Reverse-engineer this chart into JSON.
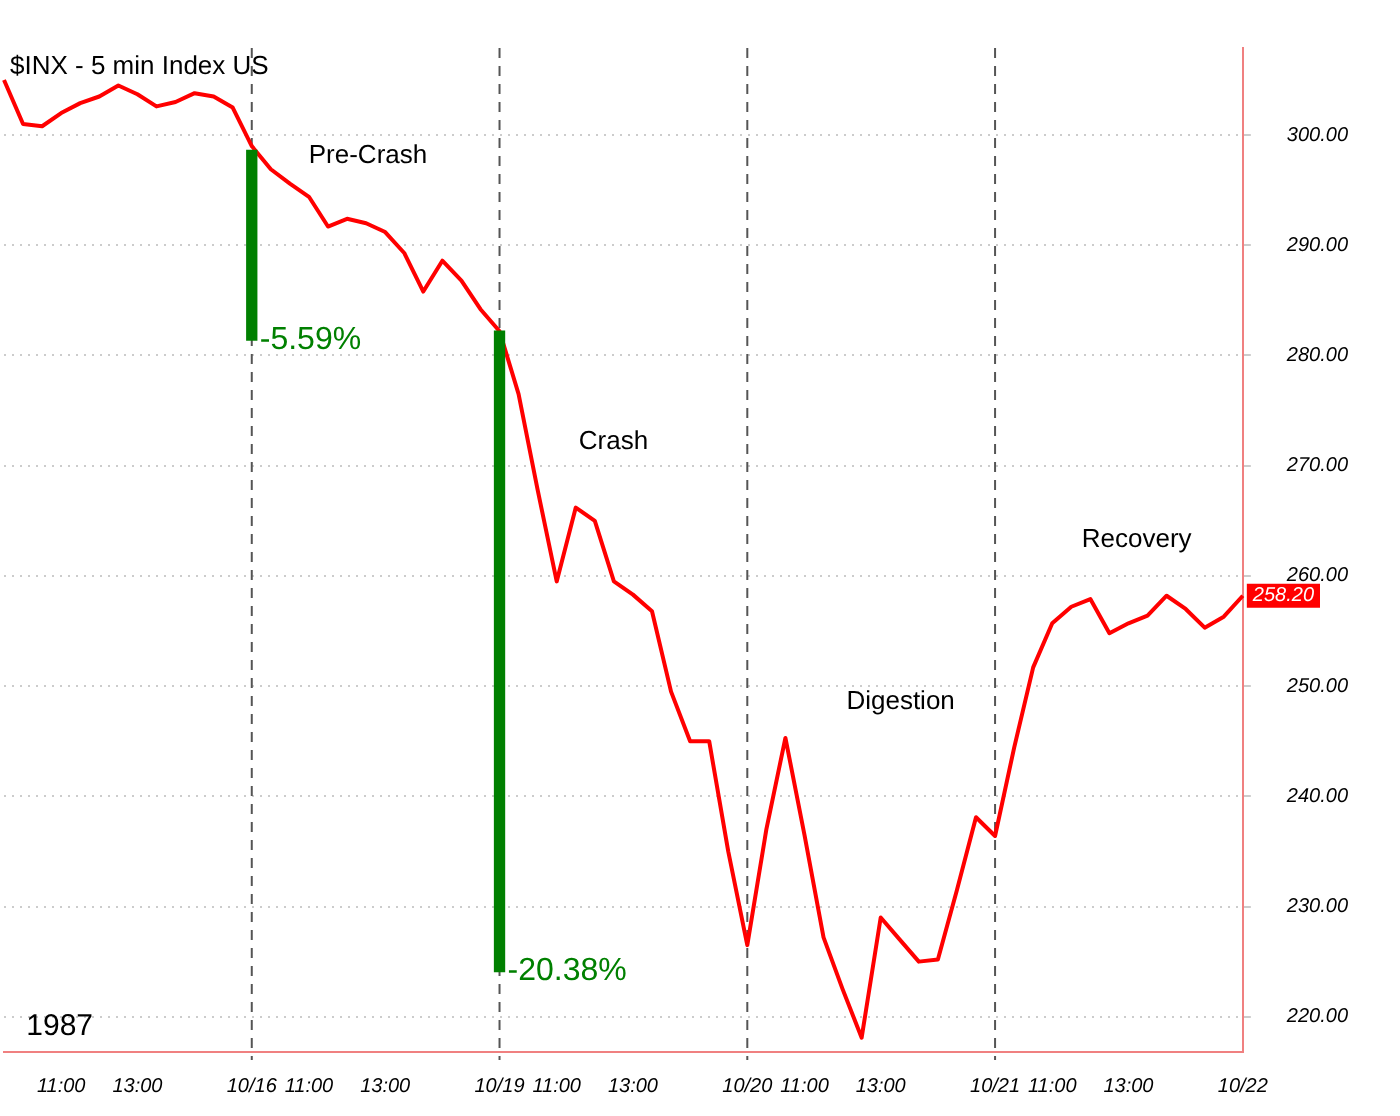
{
  "chart_data": {
    "type": "line",
    "title": "$INX - 5 min Index US",
    "categories": [
      null,
      null,
      null,
      "11:00",
      null,
      null,
      null,
      "13:00",
      null,
      null,
      null,
      null,
      null,
      "10/16",
      null,
      null,
      "11:00",
      null,
      null,
      null,
      "13:00",
      null,
      null,
      null,
      null,
      null,
      "10/19",
      null,
      null,
      "11:00",
      null,
      null,
      null,
      "13:00",
      null,
      null,
      null,
      null,
      null,
      "10/20",
      null,
      null,
      "11:00",
      null,
      null,
      null,
      "13:00",
      null,
      null,
      null,
      null,
      null,
      "10/21",
      null,
      null,
      "11:00",
      null,
      null,
      null,
      "13:00",
      null,
      null,
      null,
      null,
      null,
      "10/22"
    ],
    "ylim": [
      216.8,
      307.9
    ],
    "yticks": [
      {
        "value": 220,
        "label": "220.00"
      },
      {
        "value": 230,
        "label": "230.00"
      },
      {
        "value": 240,
        "label": "240.00"
      },
      {
        "value": 250,
        "label": "250.00"
      },
      {
        "value": 260,
        "label": "260.00"
      },
      {
        "value": 270,
        "label": "270.00"
      },
      {
        "value": 280,
        "label": "280.00"
      },
      {
        "value": 290,
        "label": "290.00"
      },
      {
        "value": 300,
        "label": "300.00"
      }
    ],
    "grid": "y",
    "legend": false,
    "marker": "none",
    "series": [
      {
        "color": "#ff0000",
        "values": [
          305.0,
          301.0,
          300.8,
          302.0,
          302.9,
          303.5,
          304.5,
          303.7,
          302.6,
          303.0,
          303.8,
          303.5,
          302.5,
          299.0,
          296.9,
          295.6,
          294.4,
          291.7,
          292.4,
          292.0,
          291.2,
          289.3,
          285.8,
          288.6,
          286.8,
          284.2,
          282.2,
          276.5,
          267.8,
          259.5,
          266.2,
          265.0,
          259.5,
          258.3,
          256.8,
          249.5,
          245.0,
          245.0,
          235.0,
          226.5,
          237.0,
          245.3,
          236.5,
          227.2,
          222.5,
          218.1,
          229.0,
          227.0,
          225.0,
          225.2,
          231.5,
          238.1,
          236.4,
          244.4,
          251.7,
          255.7,
          257.2,
          257.9,
          254.8,
          255.7,
          256.4,
          258.2,
          257.0,
          255.3,
          256.3,
          258.2
        ]
      },
      {
        "type": "bar",
        "color": "#008000",
        "values": [
          null,
          null,
          null,
          null,
          null,
          null,
          null,
          null,
          null,
          null,
          null,
          null,
          null,
          17.2,
          null,
          null,
          null,
          null,
          null,
          null,
          null,
          null,
          null,
          null,
          null,
          null,
          58.1,
          null,
          null,
          null,
          null,
          null,
          null,
          null,
          null,
          null,
          null,
          null,
          null,
          null,
          null,
          null,
          null,
          null,
          null,
          null,
          null,
          null,
          null,
          null,
          null,
          null,
          null,
          null,
          null,
          null,
          null,
          null,
          null,
          null,
          null,
          null,
          null,
          null,
          null,
          null
        ],
        "base": [
          null,
          null,
          null,
          null,
          null,
          null,
          null,
          null,
          null,
          null,
          null,
          null,
          null,
          281.4,
          null,
          null,
          null,
          null,
          null,
          null,
          null,
          null,
          null,
          null,
          null,
          null,
          224.1,
          null,
          null,
          null,
          null,
          null,
          null,
          null,
          null,
          null,
          null,
          null,
          null,
          null,
          null,
          null,
          null,
          null,
          null,
          null,
          null,
          null,
          null,
          null,
          null,
          null,
          null,
          null,
          null,
          null,
          null,
          null,
          null,
          null,
          null,
          null,
          null,
          null,
          null,
          null
        ]
      }
    ],
    "ref_lines": [
      {
        "axis": "x",
        "value": "10/16",
        "color": "#555555",
        "line_style": "dashed"
      },
      {
        "axis": "x",
        "value": "10/19",
        "color": "#555555",
        "line_style": "dashed"
      },
      {
        "axis": "x",
        "value": "10/20",
        "color": "#555555",
        "line_style": "dashed"
      },
      {
        "axis": "x",
        "value": "10/21",
        "color": "#555555",
        "line_style": "dashed"
      }
    ],
    "annotations": [
      {
        "text": "-5.59%",
        "x": "10/16",
        "y": 281.4
      },
      {
        "text": "-20.38%",
        "x": "10/19",
        "y": 224.1
      },
      "Pre-Crash",
      "Crash",
      "Digestion",
      "Recovery",
      "1987",
      "258.20"
    ]
  }
}
